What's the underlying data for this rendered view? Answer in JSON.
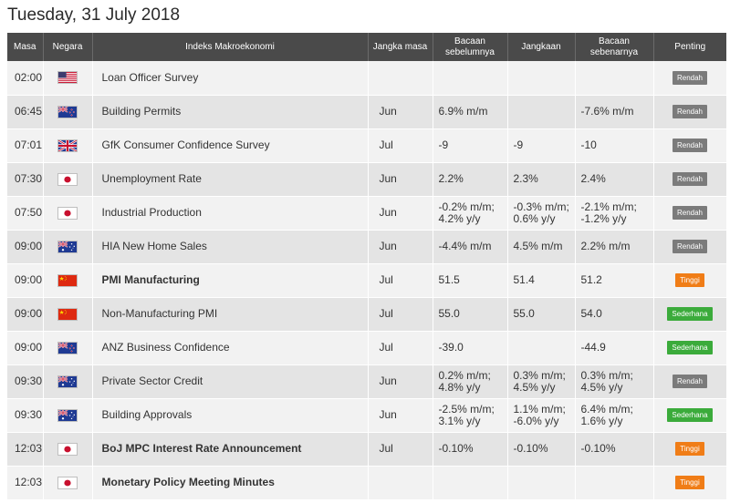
{
  "page": {
    "date": "Tuesday, 31 July 2018"
  },
  "table": {
    "headers": {
      "time": "Masa",
      "country": "Negara",
      "indicator": "Indeks Makroekonomi",
      "period": "Jangka masa",
      "previous_line1": "Bacaan",
      "previous_line2": "sebelumnya",
      "forecast": "Jangkaan",
      "actual_line1": "Bacaan",
      "actual_line2": "sebenarnya",
      "importance": "Penting"
    },
    "rows": [
      {
        "time": "02:00",
        "flag": "us-flag-icon",
        "name": "Loan Officer Survey",
        "bold": false,
        "period": "",
        "prev": [
          "",
          ""
        ],
        "forecast": [
          "",
          ""
        ],
        "actual": [
          "",
          ""
        ],
        "actual_color": "",
        "importance": "Rendah",
        "importance_level": "low"
      },
      {
        "time": "06:45",
        "flag": "nz-flag-icon",
        "name": "Building Permits",
        "bold": false,
        "period": "Jun",
        "prev": [
          "6.9% m/m",
          ""
        ],
        "forecast": [
          "",
          ""
        ],
        "actual": [
          "-7.6% m/m",
          ""
        ],
        "actual_color": "",
        "importance": "Rendah",
        "importance_level": "low"
      },
      {
        "time": "07:01",
        "flag": "uk-flag-icon",
        "name": "GfK Consumer Confidence Survey",
        "bold": false,
        "period": "Jul",
        "prev": [
          "-9",
          ""
        ],
        "forecast": [
          "-9",
          ""
        ],
        "actual": [
          "-10",
          ""
        ],
        "actual_color": "red",
        "importance": "Rendah",
        "importance_level": "low"
      },
      {
        "time": "07:30",
        "flag": "jp-flag-icon",
        "name": "Unemployment Rate",
        "bold": false,
        "period": "Jun",
        "prev": [
          "2.2%",
          ""
        ],
        "forecast": [
          "2.3%",
          ""
        ],
        "actual": [
          "2.4%",
          ""
        ],
        "actual_color": "green",
        "importance": "Rendah",
        "importance_level": "low"
      },
      {
        "time": "07:50",
        "flag": "jp-flag-icon",
        "name": "Industrial Production",
        "bold": false,
        "period": "Jun",
        "prev": [
          "-0.2% m/m;",
          "4.2% y/y"
        ],
        "forecast": [
          "-0.3% m/m;",
          "0.6% y/y"
        ],
        "actual": [
          "-2.1% m/m;",
          "-1.2% y/y"
        ],
        "actual_color": "red",
        "importance": "Rendah",
        "importance_level": "low"
      },
      {
        "time": "09:00",
        "flag": "au-flag-icon",
        "name": "HIA New Home Sales",
        "bold": false,
        "period": "Jun",
        "prev": [
          "-4.4% m/m",
          ""
        ],
        "forecast": [
          "4.5% m/m",
          ""
        ],
        "actual": [
          "2.2% m/m",
          ""
        ],
        "actual_color": "red",
        "importance": "Rendah",
        "importance_level": "low"
      },
      {
        "time": "09:00",
        "flag": "cn-flag-icon",
        "name": "PMI Manufacturing",
        "bold": true,
        "period": "Jul",
        "prev": [
          "51.5",
          ""
        ],
        "forecast": [
          "51.4",
          ""
        ],
        "actual": [
          "51.2",
          ""
        ],
        "actual_color": "red",
        "importance": "Tinggi",
        "importance_level": "high"
      },
      {
        "time": "09:00",
        "flag": "cn-flag-icon",
        "name": "Non-Manufacturing PMI",
        "bold": false,
        "period": "Jul",
        "prev": [
          "55.0",
          ""
        ],
        "forecast": [
          "55.0",
          ""
        ],
        "actual": [
          "54.0",
          ""
        ],
        "actual_color": "red",
        "importance": "Sederhana",
        "importance_level": "mid"
      },
      {
        "time": "09:00",
        "flag": "nz-flag-icon",
        "name": "ANZ Business Confidence",
        "bold": false,
        "period": "Jul",
        "prev": [
          "-39.0",
          ""
        ],
        "forecast": [
          "",
          ""
        ],
        "actual": [
          "-44.9",
          ""
        ],
        "actual_color": "",
        "importance": "Sederhana",
        "importance_level": "mid"
      },
      {
        "time": "09:30",
        "flag": "au-flag-icon",
        "name": "Private Sector Credit",
        "bold": false,
        "period": "Jun",
        "prev": [
          "0.2% m/m;",
          "4.8% y/y"
        ],
        "forecast": [
          "0.3% m/m;",
          "4.5% y/y"
        ],
        "actual": [
          "0.3% m/m;",
          "4.5% y/y"
        ],
        "actual_color": "",
        "importance": "Rendah",
        "importance_level": "low"
      },
      {
        "time": "09:30",
        "flag": "au-flag-icon",
        "name": "Building Approvals",
        "bold": false,
        "period": "Jun",
        "prev": [
          "-2.5% m/m;",
          "3.1% y/y"
        ],
        "forecast": [
          "1.1% m/m;",
          "-6.0% y/y"
        ],
        "actual": [
          "6.4% m/m;",
          "1.6% y/y"
        ],
        "actual_color": "green",
        "importance": "Sederhana",
        "importance_level": "mid"
      },
      {
        "time": "12:03",
        "flag": "jp-flag-icon",
        "name": "BoJ MPC Interest Rate Announcement",
        "bold": true,
        "period": "Jul",
        "prev": [
          "-0.10%",
          ""
        ],
        "forecast": [
          "-0.10%",
          ""
        ],
        "actual": [
          "-0.10%",
          ""
        ],
        "actual_color": "",
        "importance": "Tinggi",
        "importance_level": "high"
      },
      {
        "time": "12:03",
        "flag": "jp-flag-icon",
        "name": "Monetary Policy Meeting Minutes",
        "bold": true,
        "period": "",
        "prev": [
          "",
          ""
        ],
        "forecast": [
          "",
          ""
        ],
        "actual": [
          "",
          ""
        ],
        "actual_color": "",
        "importance": "Tinggi",
        "importance_level": "high"
      }
    ]
  }
}
